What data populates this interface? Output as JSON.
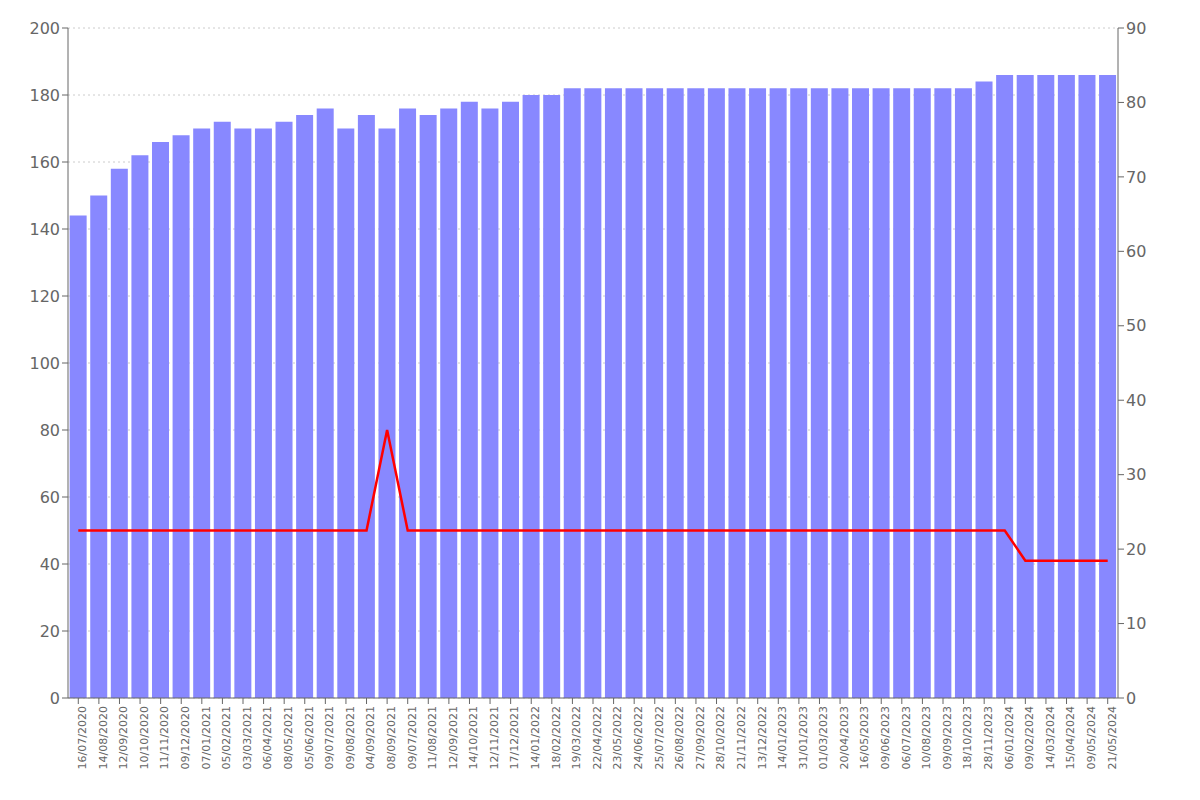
{
  "chart_data": {
    "type": "bar",
    "categories": [
      "16/07/2020",
      "14/08/2020",
      "12/09/2020",
      "10/10/2020",
      "11/11/2020",
      "09/12/2020",
      "07/01/2021",
      "05/02/2021",
      "03/03/2021",
      "06/04/2021",
      "08/05/2021",
      "05/06/2021",
      "09/07/2021",
      "09/08/2021",
      "04/09/2021",
      "08/09/2021",
      "09/07/2021",
      "11/08/2021",
      "12/09/2021",
      "14/10/2021",
      "12/11/2021",
      "17/12/2021",
      "14/01/2022",
      "18/02/2022",
      "19/03/2022",
      "22/04/2022",
      "23/05/2022",
      "24/06/2022",
      "25/07/2022",
      "26/08/2022",
      "27/09/2022",
      "28/10/2022",
      "21/11/2022",
      "13/12/2022",
      "14/01/2023",
      "31/01/2023",
      "01/03/2023",
      "20/04/2023",
      "16/05/2023",
      "09/06/2023",
      "06/07/2023",
      "10/08/2023",
      "09/09/2023",
      "18/10/2023",
      "28/11/2023",
      "06/01/2024",
      "09/02/2024",
      "14/03/2024",
      "15/04/2024",
      "09/05/2024",
      "21/05/2024"
    ],
    "series": [
      {
        "type": "bar",
        "color": "#8888ff",
        "values": [
          144,
          150,
          158,
          162,
          166,
          168,
          170,
          172,
          170,
          170,
          172,
          174,
          176,
          170,
          174,
          170,
          176,
          174,
          176,
          178,
          176,
          178,
          180,
          180,
          182,
          182,
          182,
          182,
          182,
          182,
          182,
          182,
          182,
          182,
          182,
          182,
          182,
          182,
          182,
          182,
          182,
          182,
          182,
          182,
          184,
          186,
          186,
          186,
          186,
          186,
          186
        ]
      },
      {
        "type": "line",
        "color": "#ff0000",
        "values": [
          50,
          50,
          50,
          50,
          50,
          50,
          50,
          50,
          50,
          50,
          50,
          50,
          50,
          50,
          50,
          80,
          50,
          50,
          50,
          50,
          50,
          50,
          50,
          50,
          50,
          50,
          50,
          50,
          50,
          50,
          50,
          50,
          50,
          50,
          50,
          50,
          50,
          50,
          50,
          50,
          50,
          50,
          50,
          50,
          50,
          50,
          41,
          41,
          41,
          41,
          41
        ]
      }
    ],
    "ylim": [
      0,
      200
    ],
    "yticks": [
      0,
      20,
      40,
      60,
      80,
      100,
      120,
      140,
      160,
      180,
      200
    ],
    "y2lim": [
      0,
      90
    ],
    "y2ticks": [
      0,
      10,
      20,
      30,
      40,
      50,
      60,
      70,
      80,
      90
    ],
    "grid": true
  }
}
